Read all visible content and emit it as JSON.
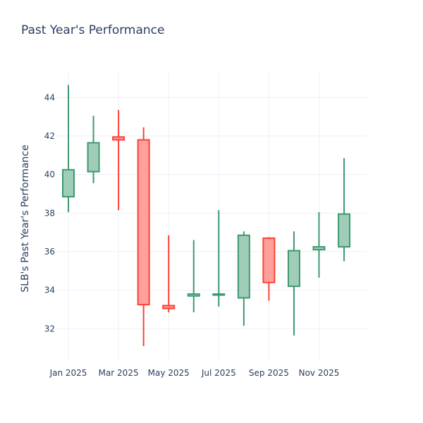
{
  "chart_data": {
    "type": "candlestick",
    "title": "Past Year's Performance",
    "xlabel": "",
    "ylabel": "SLB's Past Year's Performance",
    "ylim": [
      30.4,
      45.4
    ],
    "yticks": [
      32,
      34,
      36,
      38,
      40,
      42,
      44
    ],
    "xticks": [
      {
        "label": "Jan 2025",
        "month": 0
      },
      {
        "label": "Mar 2025",
        "month": 2
      },
      {
        "label": "May 2025",
        "month": 4
      },
      {
        "label": "Jul 2025",
        "month": 6
      },
      {
        "label": "Sep 2025",
        "month": 8
      },
      {
        "label": "Nov 2025",
        "month": 10
      }
    ],
    "grid": true,
    "colors": {
      "increasing_line": "#3d9970",
      "increasing_fill": "#9fcdb8",
      "decreasing_line": "#ff4136",
      "decreasing_fill": "#ffa09b",
      "grid": "#ebf0f8"
    },
    "candles": [
      {
        "month": 0,
        "open": 38.85,
        "high": 44.65,
        "low": 38.05,
        "close": 40.25
      },
      {
        "month": 1,
        "open": 40.15,
        "high": 43.05,
        "low": 39.55,
        "close": 41.65
      },
      {
        "month": 2,
        "open": 41.95,
        "high": 43.35,
        "low": 38.15,
        "close": 41.8
      },
      {
        "month": 3,
        "open": 41.8,
        "high": 42.45,
        "low": 31.1,
        "close": 33.25
      },
      {
        "month": 4,
        "open": 33.2,
        "high": 36.85,
        "low": 32.85,
        "close": 33.05
      },
      {
        "month": 5,
        "open": 33.7,
        "high": 36.6,
        "low": 32.85,
        "close": 33.8
      },
      {
        "month": 6,
        "open": 33.75,
        "high": 38.15,
        "low": 33.15,
        "close": 33.8
      },
      {
        "month": 7,
        "open": 33.6,
        "high": 37.05,
        "low": 32.15,
        "close": 36.85
      },
      {
        "month": 8,
        "open": 36.7,
        "high": 36.75,
        "low": 33.45,
        "close": 34.4
      },
      {
        "month": 9,
        "open": 34.2,
        "high": 37.05,
        "low": 31.65,
        "close": 36.05
      },
      {
        "month": 10,
        "open": 36.1,
        "high": 38.05,
        "low": 34.65,
        "close": 36.25
      },
      {
        "month": 11,
        "open": 36.25,
        "high": 40.85,
        "low": 35.5,
        "close": 37.95
      }
    ]
  }
}
